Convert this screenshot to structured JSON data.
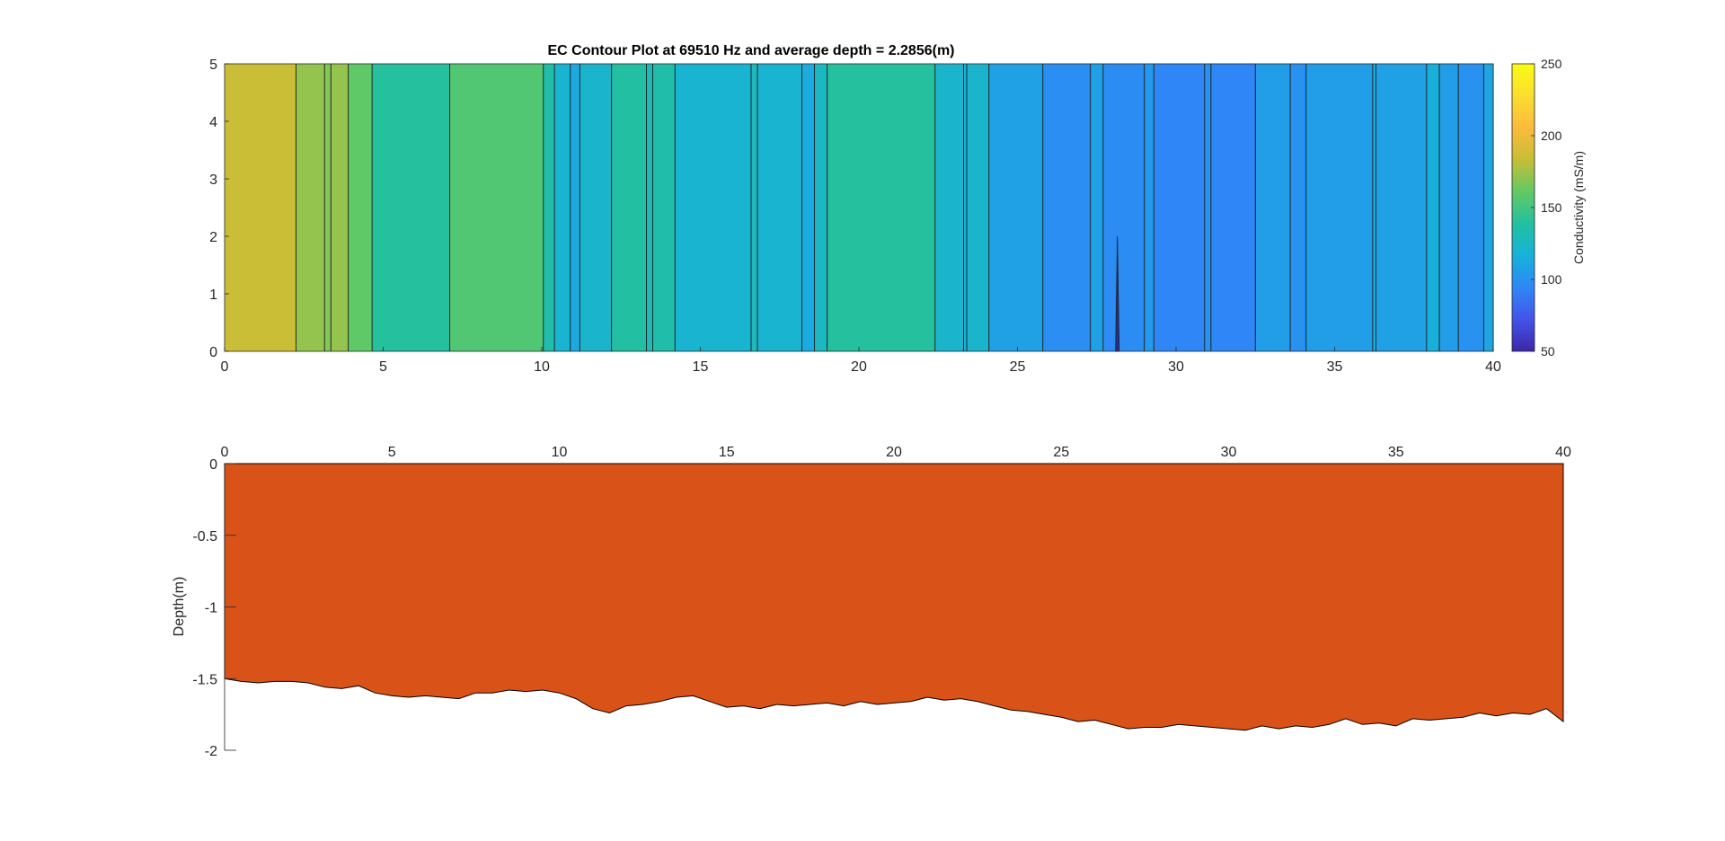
{
  "chart_data": [
    {
      "type": "heatmap",
      "title": "EC Contour Plot at 69510 Hz and average depth = 2.2856(m)",
      "xlabel": "",
      "ylabel": "",
      "xlim": [
        0,
        40
      ],
      "ylim": [
        0,
        5
      ],
      "x_ticks": [
        0,
        5,
        10,
        15,
        20,
        25,
        30,
        35,
        40
      ],
      "y_ticks": [
        0,
        1,
        2,
        3,
        4,
        5
      ],
      "colorbar": {
        "label": "Conductivity (mS/m)",
        "range": [
          50,
          250
        ],
        "ticks": [
          50,
          100,
          150,
          200,
          250
        ],
        "colormap": [
          "#3e26a8",
          "#4354e8",
          "#2e87f7",
          "#17b2d9",
          "#22c0a0",
          "#63c964",
          "#c6be36",
          "#fbbb3d",
          "#fade2e",
          "#f9fb15"
        ]
      },
      "bands": [
        {
          "x0": 0.0,
          "x1": 2.25,
          "value": 185
        },
        {
          "x0": 2.25,
          "x1": 3.15,
          "value": 172
        },
        {
          "x0": 3.15,
          "x1": 3.35,
          "value": 168
        },
        {
          "x0": 3.35,
          "x1": 3.9,
          "value": 172
        },
        {
          "x0": 3.9,
          "x1": 4.65,
          "value": 160
        },
        {
          "x0": 4.65,
          "x1": 7.1,
          "value": 140
        },
        {
          "x0": 7.1,
          "x1": 10.05,
          "value": 155
        },
        {
          "x0": 10.05,
          "x1": 10.4,
          "value": 135
        },
        {
          "x0": 10.4,
          "x1": 10.9,
          "value": 120
        },
        {
          "x0": 10.9,
          "x1": 11.2,
          "value": 112
        },
        {
          "x0": 11.2,
          "x1": 12.2,
          "value": 122
        },
        {
          "x0": 12.2,
          "x1": 13.3,
          "value": 138
        },
        {
          "x0": 13.3,
          "x1": 13.5,
          "value": 130
        },
        {
          "x0": 13.5,
          "x1": 14.2,
          "value": 135
        },
        {
          "x0": 14.2,
          "x1": 16.6,
          "value": 120
        },
        {
          "x0": 16.6,
          "x1": 16.8,
          "value": 128
        },
        {
          "x0": 16.8,
          "x1": 18.2,
          "value": 120
        },
        {
          "x0": 18.2,
          "x1": 18.6,
          "value": 113
        },
        {
          "x0": 18.6,
          "x1": 19.0,
          "value": 126
        },
        {
          "x0": 19.0,
          "x1": 22.4,
          "value": 140
        },
        {
          "x0": 22.4,
          "x1": 23.3,
          "value": 122
        },
        {
          "x0": 23.3,
          "x1": 23.4,
          "value": 115
        },
        {
          "x0": 23.4,
          "x1": 24.1,
          "value": 122
        },
        {
          "x0": 24.1,
          "x1": 25.8,
          "value": 108
        },
        {
          "x0": 25.8,
          "x1": 27.3,
          "value": 98
        },
        {
          "x0": 27.3,
          "x1": 27.7,
          "value": 108
        },
        {
          "x0": 27.7,
          "x1": 29.0,
          "value": 97
        },
        {
          "x0": 29.0,
          "x1": 29.3,
          "value": 103
        },
        {
          "x0": 29.3,
          "x1": 30.9,
          "value": 94
        },
        {
          "x0": 30.9,
          "x1": 31.1,
          "value": 100
        },
        {
          "x0": 31.1,
          "x1": 32.5,
          "value": 94
        },
        {
          "x0": 32.5,
          "x1": 33.6,
          "value": 106
        },
        {
          "x0": 33.6,
          "x1": 34.1,
          "value": 100
        },
        {
          "x0": 34.1,
          "x1": 36.2,
          "value": 106
        },
        {
          "x0": 36.2,
          "x1": 36.3,
          "value": 115
        },
        {
          "x0": 36.3,
          "x1": 37.9,
          "value": 108
        },
        {
          "x0": 37.9,
          "x1": 38.3,
          "value": 115
        },
        {
          "x0": 38.3,
          "x1": 38.9,
          "value": 106
        },
        {
          "x0": 38.9,
          "x1": 39.7,
          "value": 100
        },
        {
          "x0": 39.7,
          "x1": 40.0,
          "value": 110
        }
      ],
      "spike": {
        "x": 28.15,
        "depth_top": 2.0
      }
    },
    {
      "type": "area",
      "title": "",
      "xlabel": "",
      "ylabel": "Depth(m)",
      "xlim": [
        0,
        40
      ],
      "ylim": [
        -2,
        0
      ],
      "x_ticks": [
        0,
        5,
        10,
        15,
        20,
        25,
        30,
        35,
        40
      ],
      "y_ticks": [
        0,
        -0.5,
        -1,
        -1.5,
        -2
      ],
      "y_tick_labels": [
        "0",
        "-0.5",
        "-1",
        "-1.5",
        "-2"
      ],
      "x_axis_location": "top",
      "fill_color": "#d95319",
      "x": [
        0,
        0.5,
        1,
        1.5,
        2,
        2.5,
        3,
        3.5,
        4,
        4.5,
        5,
        5.5,
        6,
        6.5,
        7,
        7.5,
        8,
        8.5,
        9,
        9.5,
        10,
        10.5,
        11,
        11.5,
        12,
        12.5,
        13,
        13.5,
        14,
        14.5,
        15,
        15.5,
        16,
        16.5,
        17,
        17.5,
        18,
        18.5,
        19,
        19.5,
        20,
        20.5,
        21,
        21.5,
        22,
        22.5,
        23,
        23.5,
        24,
        24.5,
        25,
        25.5,
        26,
        26.5,
        27,
        27.5,
        28,
        28.5,
        29,
        29.5,
        30,
        30.5,
        31,
        31.5,
        32,
        32.5,
        33,
        33.5,
        34,
        34.5,
        35,
        35.5,
        36,
        36.5,
        37,
        37.5,
        38,
        38.5,
        39,
        39.5,
        40
      ],
      "y": [
        -1.5,
        -1.52,
        -1.53,
        -1.52,
        -1.52,
        -1.53,
        -1.56,
        -1.57,
        -1.55,
        -1.6,
        -1.62,
        -1.63,
        -1.62,
        -1.63,
        -1.64,
        -1.6,
        -1.6,
        -1.58,
        -1.59,
        -1.58,
        -1.6,
        -1.64,
        -1.71,
        -1.74,
        -1.69,
        -1.68,
        -1.66,
        -1.63,
        -1.62,
        -1.66,
        -1.7,
        -1.69,
        -1.71,
        -1.68,
        -1.69,
        -1.68,
        -1.67,
        -1.69,
        -1.66,
        -1.68,
        -1.67,
        -1.66,
        -1.63,
        -1.65,
        -1.64,
        -1.66,
        -1.69,
        -1.72,
        -1.73,
        -1.75,
        -1.77,
        -1.8,
        -1.79,
        -1.82,
        -1.85,
        -1.84,
        -1.84,
        -1.82,
        -1.83,
        -1.84,
        -1.85,
        -1.86,
        -1.83,
        -1.85,
        -1.83,
        -1.84,
        -1.82,
        -1.78,
        -1.82,
        -1.81,
        -1.83,
        -1.78,
        -1.79,
        -1.78,
        -1.77,
        -1.74,
        -1.76,
        -1.74,
        -1.75,
        -1.71,
        -1.8
      ]
    }
  ]
}
